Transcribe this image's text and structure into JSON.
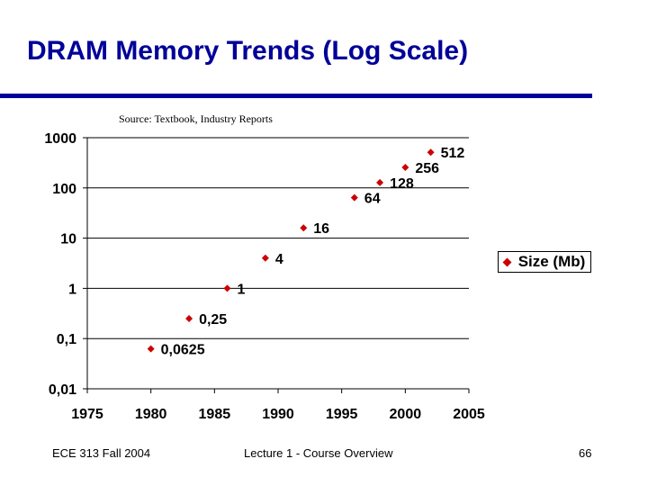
{
  "slide": {
    "title": "DRAM Memory Trends (Log Scale)",
    "source": "Source: Textbook, Industry Reports",
    "footer_left": "ECE 313 Fall 2004",
    "footer_center": "Lecture 1 - Course Overview",
    "page_number": "66"
  },
  "colors": {
    "title": "#000099",
    "marker": "#cc0000",
    "axis": "#000000"
  },
  "chart_data": {
    "type": "scatter",
    "title": "",
    "xlabel": "",
    "ylabel": "",
    "xlim": [
      1975,
      2005
    ],
    "ylim": [
      0.01,
      1000
    ],
    "yscale": "log",
    "x_ticks": [
      "1975",
      "1980",
      "1985",
      "1990",
      "1995",
      "2000",
      "2005"
    ],
    "y_ticks": [
      "0,01",
      "0,1",
      "1",
      "10",
      "100",
      "1000"
    ],
    "grid": "horizontal",
    "legend": "right",
    "series": [
      {
        "name": "Size (Mb)",
        "x": [
          1980,
          1983,
          1986,
          1989,
          1992,
          1996,
          1998,
          2000,
          2002
        ],
        "values": [
          0.0625,
          0.25,
          1,
          4,
          16,
          64,
          128,
          256,
          512
        ],
        "labels": [
          "0,0625",
          "0,25",
          "1",
          "4",
          "16",
          "64",
          "128",
          "256",
          "512"
        ]
      }
    ]
  }
}
